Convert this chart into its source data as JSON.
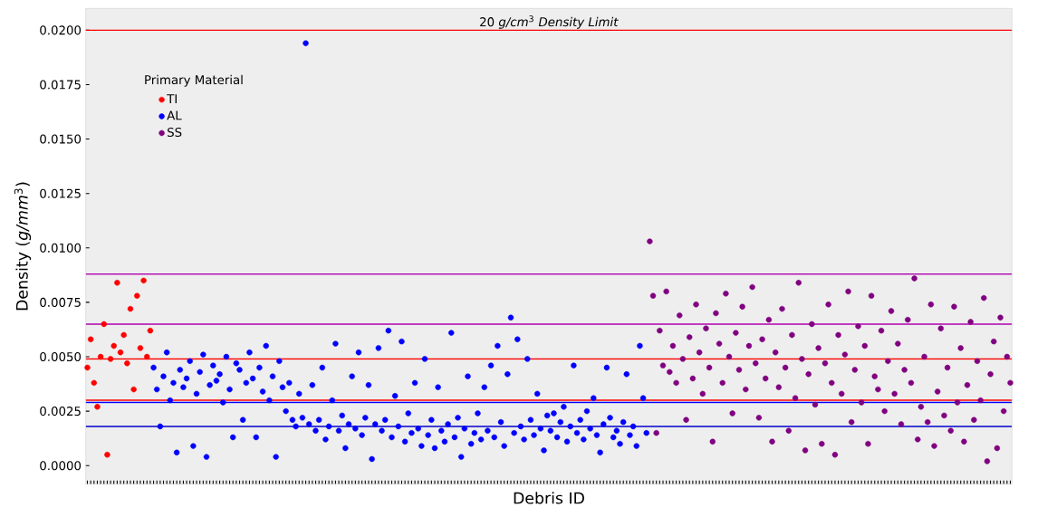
{
  "chart_data": {
    "type": "scatter",
    "xlabel": "Debris ID",
    "ylabel": "Density (*g/mm*$^{3}$)",
    "legend_title": "Primary Material",
    "legend": "top left",
    "marker": "circle",
    "ylim": [
      -0.00085,
      0.021
    ],
    "yticks": [
      {
        "value": 0,
        "label": "0.0000"
      },
      {
        "value": 0.0025,
        "label": "0.0025"
      },
      {
        "value": 0.005,
        "label": "0.0050"
      },
      {
        "value": 0.0075,
        "label": "0.0075"
      },
      {
        "value": 0.01,
        "label": "0.0100"
      },
      {
        "value": 0.0125,
        "label": "0.0125"
      },
      {
        "value": 0.015,
        "label": "0.0150"
      },
      {
        "value": 0.0175,
        "label": "0.0175"
      },
      {
        "value": 0.02,
        "label": "0.0200"
      }
    ],
    "ref_lines": [
      {
        "axis": "y",
        "value": 0.02,
        "label": "20 *g/cm*$^{3}$ *Density Limit*",
        "color": "#ff0000"
      },
      {
        "axis": "y",
        "value": 0.0088,
        "color": "#b000b0"
      },
      {
        "axis": "y",
        "value": 0.0065,
        "color": "#b000b0"
      },
      {
        "axis": "y",
        "value": 0.0049,
        "color": "#ff0000"
      },
      {
        "axis": "y",
        "value": 0.003,
        "color": "#ff0000"
      },
      {
        "axis": "y",
        "value": 0.0029,
        "color": "#0000ff"
      },
      {
        "axis": "y",
        "value": 0.0018,
        "color": "#0000cd"
      }
    ],
    "categories": [
      null,
      null,
      null,
      null,
      null,
      null,
      null,
      null,
      null,
      null,
      null,
      null,
      null,
      null,
      null,
      null,
      null,
      null,
      null,
      null,
      null,
      null,
      null,
      null,
      null,
      null,
      null,
      null,
      null,
      null,
      null,
      null,
      null,
      null,
      null,
      null,
      null,
      null,
      null,
      null,
      null,
      null,
      null,
      null,
      null,
      null,
      null,
      null,
      null,
      null,
      null,
      null,
      null,
      null,
      null,
      null,
      null,
      null,
      null,
      null,
      null,
      null,
      null,
      null,
      null,
      null,
      null,
      null,
      null,
      null,
      null,
      null,
      null,
      null,
      null,
      null,
      null,
      null,
      null,
      null,
      null,
      null,
      null,
      null,
      null,
      null,
      null,
      null,
      null,
      null,
      null,
      null,
      null,
      null,
      null,
      null,
      null,
      null,
      null,
      null,
      null,
      null,
      null,
      null,
      null,
      null,
      null,
      null,
      null,
      null,
      null,
      null,
      null,
      null,
      null,
      null,
      null,
      null,
      null,
      null,
      null,
      null,
      null,
      null,
      null,
      null,
      null,
      null,
      null,
      null,
      null,
      null,
      null,
      null,
      null,
      null,
      null,
      null,
      null,
      null,
      null,
      null,
      null,
      null,
      null,
      null,
      null,
      null,
      null,
      null,
      null,
      null,
      null,
      null,
      null,
      null,
      null,
      null,
      null,
      null,
      null,
      null,
      null,
      null,
      null,
      null,
      null,
      null,
      null,
      null,
      null,
      null,
      null,
      null,
      null,
      null,
      null,
      null,
      null,
      null,
      null,
      null,
      null,
      null,
      null,
      null,
      null,
      null,
      null,
      null,
      null,
      null,
      null,
      null,
      null,
      null,
      null,
      null,
      null,
      null,
      null,
      null,
      null,
      null,
      null,
      null,
      null,
      null,
      null,
      null,
      null,
      null,
      null,
      null,
      null,
      null,
      null,
      null,
      null,
      null,
      null,
      null,
      null,
      null,
      null,
      null,
      null,
      null,
      null,
      null,
      null,
      null,
      null,
      null,
      null,
      null,
      null,
      null,
      null,
      null,
      null,
      null,
      null,
      null,
      null,
      null,
      null,
      null,
      null,
      null,
      null,
      null,
      null,
      null,
      null,
      null,
      null,
      null,
      null,
      null,
      null,
      null,
      null,
      null,
      null,
      null,
      null,
      null,
      null,
      null,
      null,
      null,
      null,
      null,
      null,
      null,
      null,
      null,
      null,
      null
    ],
    "series": [
      {
        "name": "TI",
        "color": "#ff0000",
        "values": [
          0.0045,
          0.0058,
          0.0038,
          0.0027,
          0.005,
          0.0065,
          0.0005,
          0.0049,
          0.0055,
          0.0084,
          0.0052,
          0.006,
          0.0047,
          0.0072,
          0.0035,
          0.0078,
          0.0054,
          0.0085,
          0.005,
          0.0062,
          null,
          null,
          null,
          null,
          null,
          null,
          null,
          null,
          null,
          null,
          null,
          null,
          null,
          null,
          null,
          null,
          null,
          null,
          null,
          null,
          null,
          null,
          null,
          null,
          null,
          null,
          null,
          null,
          null,
          null,
          null,
          null,
          null,
          null,
          null,
          null,
          null,
          null,
          null,
          null,
          null,
          null,
          null,
          null,
          null,
          null,
          null,
          null,
          null,
          null,
          null,
          null,
          null,
          null,
          null,
          null,
          null,
          null,
          null,
          null,
          null,
          null,
          null,
          null,
          null,
          null,
          null,
          null,
          null,
          null,
          null,
          null,
          null,
          null,
          null,
          null,
          null,
          null,
          null,
          null,
          null,
          null,
          null,
          null,
          null,
          null,
          null,
          null,
          null,
          null,
          null,
          null,
          null,
          null,
          null,
          null,
          null,
          null,
          null,
          null,
          null,
          null,
          null,
          null,
          null,
          null,
          null,
          null,
          null,
          null,
          null,
          null,
          null,
          null,
          null,
          null,
          null,
          null,
          null,
          null,
          null,
          null,
          null,
          null,
          null,
          null,
          null,
          null,
          null,
          null,
          null,
          null,
          null,
          null,
          null,
          null,
          null,
          null,
          null,
          null,
          null,
          null,
          null,
          null,
          null,
          null,
          null,
          null,
          null,
          null,
          null,
          null,
          null,
          null,
          null,
          null,
          null,
          null,
          null,
          null,
          null,
          null,
          null,
          null,
          null,
          null,
          null,
          null,
          null,
          null,
          null,
          null,
          null,
          null,
          null,
          null,
          null,
          null,
          null,
          null,
          null,
          null,
          null,
          null,
          null,
          null,
          null,
          null,
          null,
          null,
          null,
          null,
          null,
          null,
          null,
          null,
          null,
          null,
          null,
          null,
          null,
          null,
          null,
          null,
          null,
          null,
          null,
          null,
          null,
          null,
          null,
          null,
          null,
          null,
          null,
          null,
          null,
          null,
          null,
          null,
          null,
          null,
          null,
          null,
          null,
          null,
          null,
          null,
          null,
          null,
          null,
          null,
          null,
          null,
          null,
          null,
          null,
          null,
          null,
          null,
          null,
          null,
          null,
          null,
          null,
          null,
          null,
          null,
          null,
          null,
          null,
          null,
          null,
          null,
          null,
          null,
          null,
          null,
          null,
          null
        ]
      },
      {
        "name": "AL",
        "color": "#0000ff",
        "values": [
          null,
          null,
          null,
          null,
          null,
          null,
          null,
          null,
          null,
          null,
          null,
          null,
          null,
          null,
          null,
          null,
          null,
          null,
          null,
          null,
          0.0045,
          0.0035,
          0.0018,
          0.0041,
          0.0052,
          0.003,
          0.0038,
          0.0006,
          0.0044,
          0.0036,
          0.004,
          0.0048,
          0.0009,
          0.0033,
          0.0043,
          0.0051,
          0.0004,
          0.0037,
          0.0046,
          0.0039,
          0.0042,
          0.0029,
          0.005,
          0.0035,
          0.0013,
          0.0047,
          0.0044,
          0.0021,
          0.0038,
          0.0052,
          0.004,
          0.0013,
          0.0045,
          0.0034,
          0.0055,
          0.003,
          0.0041,
          0.0004,
          0.0048,
          0.0036,
          0.0025,
          0.0038,
          0.0021,
          0.0018,
          0.0033,
          0.0022,
          0.0194,
          0.0019,
          0.0037,
          0.0016,
          0.0021,
          0.0045,
          0.0012,
          0.0018,
          0.003,
          0.0056,
          0.0016,
          0.0023,
          0.0008,
          0.0019,
          0.0041,
          0.0017,
          0.0052,
          0.0014,
          0.0022,
          0.0037,
          0.0003,
          0.0019,
          0.0054,
          0.0016,
          0.0021,
          0.0062,
          0.0013,
          0.0032,
          0.0018,
          0.0057,
          0.0011,
          0.0024,
          0.0015,
          0.0038,
          0.0017,
          0.0009,
          0.0049,
          0.0014,
          0.0021,
          0.0008,
          0.0036,
          0.0016,
          0.0011,
          0.0019,
          0.0061,
          0.0013,
          0.0022,
          0.0004,
          0.0017,
          0.0041,
          0.001,
          0.0015,
          0.0024,
          0.0012,
          0.0036,
          0.0016,
          0.0046,
          0.0013,
          0.0055,
          0.002,
          0.0009,
          0.0042,
          0.0068,
          0.0015,
          0.0058,
          0.0018,
          0.0012,
          0.0049,
          0.0021,
          0.0014,
          0.0033,
          0.0017,
          0.0007,
          0.0023,
          0.0016,
          0.0024,
          0.0013,
          0.002,
          0.0027,
          0.0011,
          0.0018,
          0.0046,
          0.0015,
          0.0021,
          0.0012,
          0.0025,
          0.0017,
          0.0031,
          0.0014,
          0.0006,
          0.0019,
          0.0045,
          0.0022,
          0.0013,
          0.0016,
          0.001,
          0.002,
          0.0042,
          0.0014,
          0.0018,
          0.0009,
          0.0055,
          0.0031,
          0.0015,
          null,
          null,
          null,
          null,
          null,
          null,
          null,
          null,
          null,
          null,
          null,
          null,
          null,
          null,
          null,
          null,
          null,
          null,
          null,
          null,
          null,
          null,
          null,
          null,
          null,
          null,
          null,
          null,
          null,
          null,
          null,
          null,
          null,
          null,
          null,
          null,
          null,
          null,
          null,
          null,
          null,
          null,
          null,
          null,
          null,
          null,
          null,
          null,
          null,
          null,
          null,
          null,
          null,
          null,
          null,
          null,
          null,
          null,
          null,
          null,
          null,
          null,
          null,
          null,
          null,
          null,
          null,
          null,
          null,
          null,
          null,
          null,
          null,
          null,
          null,
          null,
          null,
          null,
          null,
          null,
          null,
          null,
          null,
          null,
          null,
          null,
          null,
          null,
          null,
          null,
          null,
          null,
          null,
          null,
          null,
          null,
          null,
          null,
          null,
          null,
          null,
          null,
          null,
          null,
          null,
          null,
          null,
          null,
          null,
          null
        ]
      },
      {
        "name": "SS",
        "color": "#800080",
        "values": [
          null,
          null,
          null,
          null,
          null,
          null,
          null,
          null,
          null,
          null,
          null,
          null,
          null,
          null,
          null,
          null,
          null,
          null,
          null,
          null,
          null,
          null,
          null,
          null,
          null,
          null,
          null,
          null,
          null,
          null,
          null,
          null,
          null,
          null,
          null,
          null,
          null,
          null,
          null,
          null,
          null,
          null,
          null,
          null,
          null,
          null,
          null,
          null,
          null,
          null,
          null,
          null,
          null,
          null,
          null,
          null,
          null,
          null,
          null,
          null,
          null,
          null,
          null,
          null,
          null,
          null,
          null,
          null,
          null,
          null,
          null,
          null,
          null,
          null,
          null,
          null,
          null,
          null,
          null,
          null,
          null,
          null,
          null,
          null,
          null,
          null,
          null,
          null,
          null,
          null,
          null,
          null,
          null,
          null,
          null,
          null,
          null,
          null,
          null,
          null,
          null,
          null,
          null,
          null,
          null,
          null,
          null,
          null,
          null,
          null,
          null,
          null,
          null,
          null,
          null,
          null,
          null,
          null,
          null,
          null,
          null,
          null,
          null,
          null,
          null,
          null,
          null,
          null,
          null,
          null,
          null,
          null,
          null,
          null,
          null,
          null,
          null,
          null,
          null,
          null,
          null,
          null,
          null,
          null,
          null,
          null,
          null,
          null,
          null,
          null,
          null,
          null,
          null,
          null,
          null,
          null,
          null,
          null,
          null,
          null,
          null,
          null,
          null,
          null,
          null,
          null,
          null,
          null,
          null,
          null,
          0.0103,
          0.0078,
          0.0015,
          0.0062,
          0.0046,
          0.008,
          0.0043,
          0.0055,
          0.0038,
          0.0069,
          0.0049,
          0.0021,
          0.0059,
          0.004,
          0.0074,
          0.0052,
          0.0033,
          0.0063,
          0.0045,
          0.0011,
          0.007,
          0.0056,
          0.0038,
          0.0079,
          0.005,
          0.0024,
          0.0061,
          0.0044,
          0.0073,
          0.0035,
          0.0055,
          0.0082,
          0.0047,
          0.0022,
          0.0058,
          0.004,
          0.0067,
          0.0011,
          0.0052,
          0.0036,
          0.0072,
          0.0045,
          0.0016,
          0.006,
          0.0031,
          0.0084,
          0.0049,
          0.0007,
          0.0042,
          0.0065,
          0.0028,
          0.0054,
          0.001,
          0.0047,
          0.0074,
          0.0038,
          0.0005,
          0.006,
          0.0033,
          0.0051,
          0.008,
          0.002,
          0.0044,
          0.0064,
          0.0029,
          0.0055,
          0.001,
          0.0078,
          0.0041,
          0.0035,
          0.0062,
          0.0025,
          0.0048,
          0.0071,
          0.0033,
          0.0056,
          0.0019,
          0.0044,
          0.0067,
          0.0038,
          0.0086,
          0.0012,
          0.0027,
          0.005,
          0.002,
          0.0074,
          0.0009,
          0.0034,
          0.0063,
          0.0023,
          0.0045,
          0.0016,
          0.0073,
          0.0029,
          0.0054,
          0.0011,
          0.0037,
          0.0066,
          0.0021,
          0.0048,
          0.003,
          0.0077,
          0.0002,
          0.0042,
          0.0057,
          0.0008,
          0.0068,
          0.0025,
          0.005,
          0.0038
        ]
      }
    ]
  }
}
